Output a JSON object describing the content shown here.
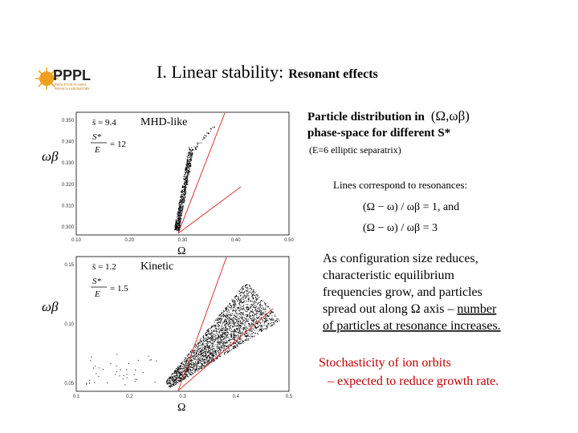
{
  "header": {
    "title": "I. Linear stability:",
    "subtitle": "Resonant effects",
    "logo": "PPPL",
    "logo_sub": [
      "PRINCETON PLASMA",
      "PHYSICS LABORATORY"
    ]
  },
  "plots": [
    {
      "label": "MHD-like",
      "s": "s̄ = 9.4",
      "se_top": "S*",
      "se_bottom": "E",
      "se_value": "= 12",
      "ylabel": "ωβ",
      "xlabel": "Ω",
      "xticks": [
        "0.10",
        "0.20",
        "0.30",
        "0.40",
        "0.50"
      ],
      "yticks": [
        "0.350",
        "0.340",
        "0.330",
        "0.320",
        "0.310",
        "0.300"
      ]
    },
    {
      "label": "Kinetic",
      "s": "s̄ = 1.2",
      "se_top": "S*",
      "se_bottom": "E",
      "se_value": "= 1.5",
      "ylabel": "ωβ",
      "xlabel": "Ω",
      "xticks": [
        "0.1",
        "0.2",
        "0.3",
        "0.4",
        "0.5"
      ],
      "yticks": [
        "0.15",
        "0.10",
        "0.05"
      ]
    }
  ],
  "description": {
    "heading": [
      "Particle distribution in",
      "phase-space for different S*"
    ],
    "heading_math": "(Ω,ωβ)",
    "note": "(E=6  elliptic separatrix)",
    "lines_intro": "Lines correspond to resonances:",
    "eq1": "(Ω − ω) / ωβ = 1,  and",
    "eq2": "(Ω − ω) / ωβ = 3"
  },
  "paragraph": [
    "As configuration size reduces,",
    "characteristic equilibrium",
    "frequencies grow, and particles",
    "spread out along Ω axis –",
    "number",
    "of particles at resonance increases."
  ],
  "conclusion": [
    "Stochasticity of ion orbits",
    "– expected to reduce growth rate."
  ]
}
